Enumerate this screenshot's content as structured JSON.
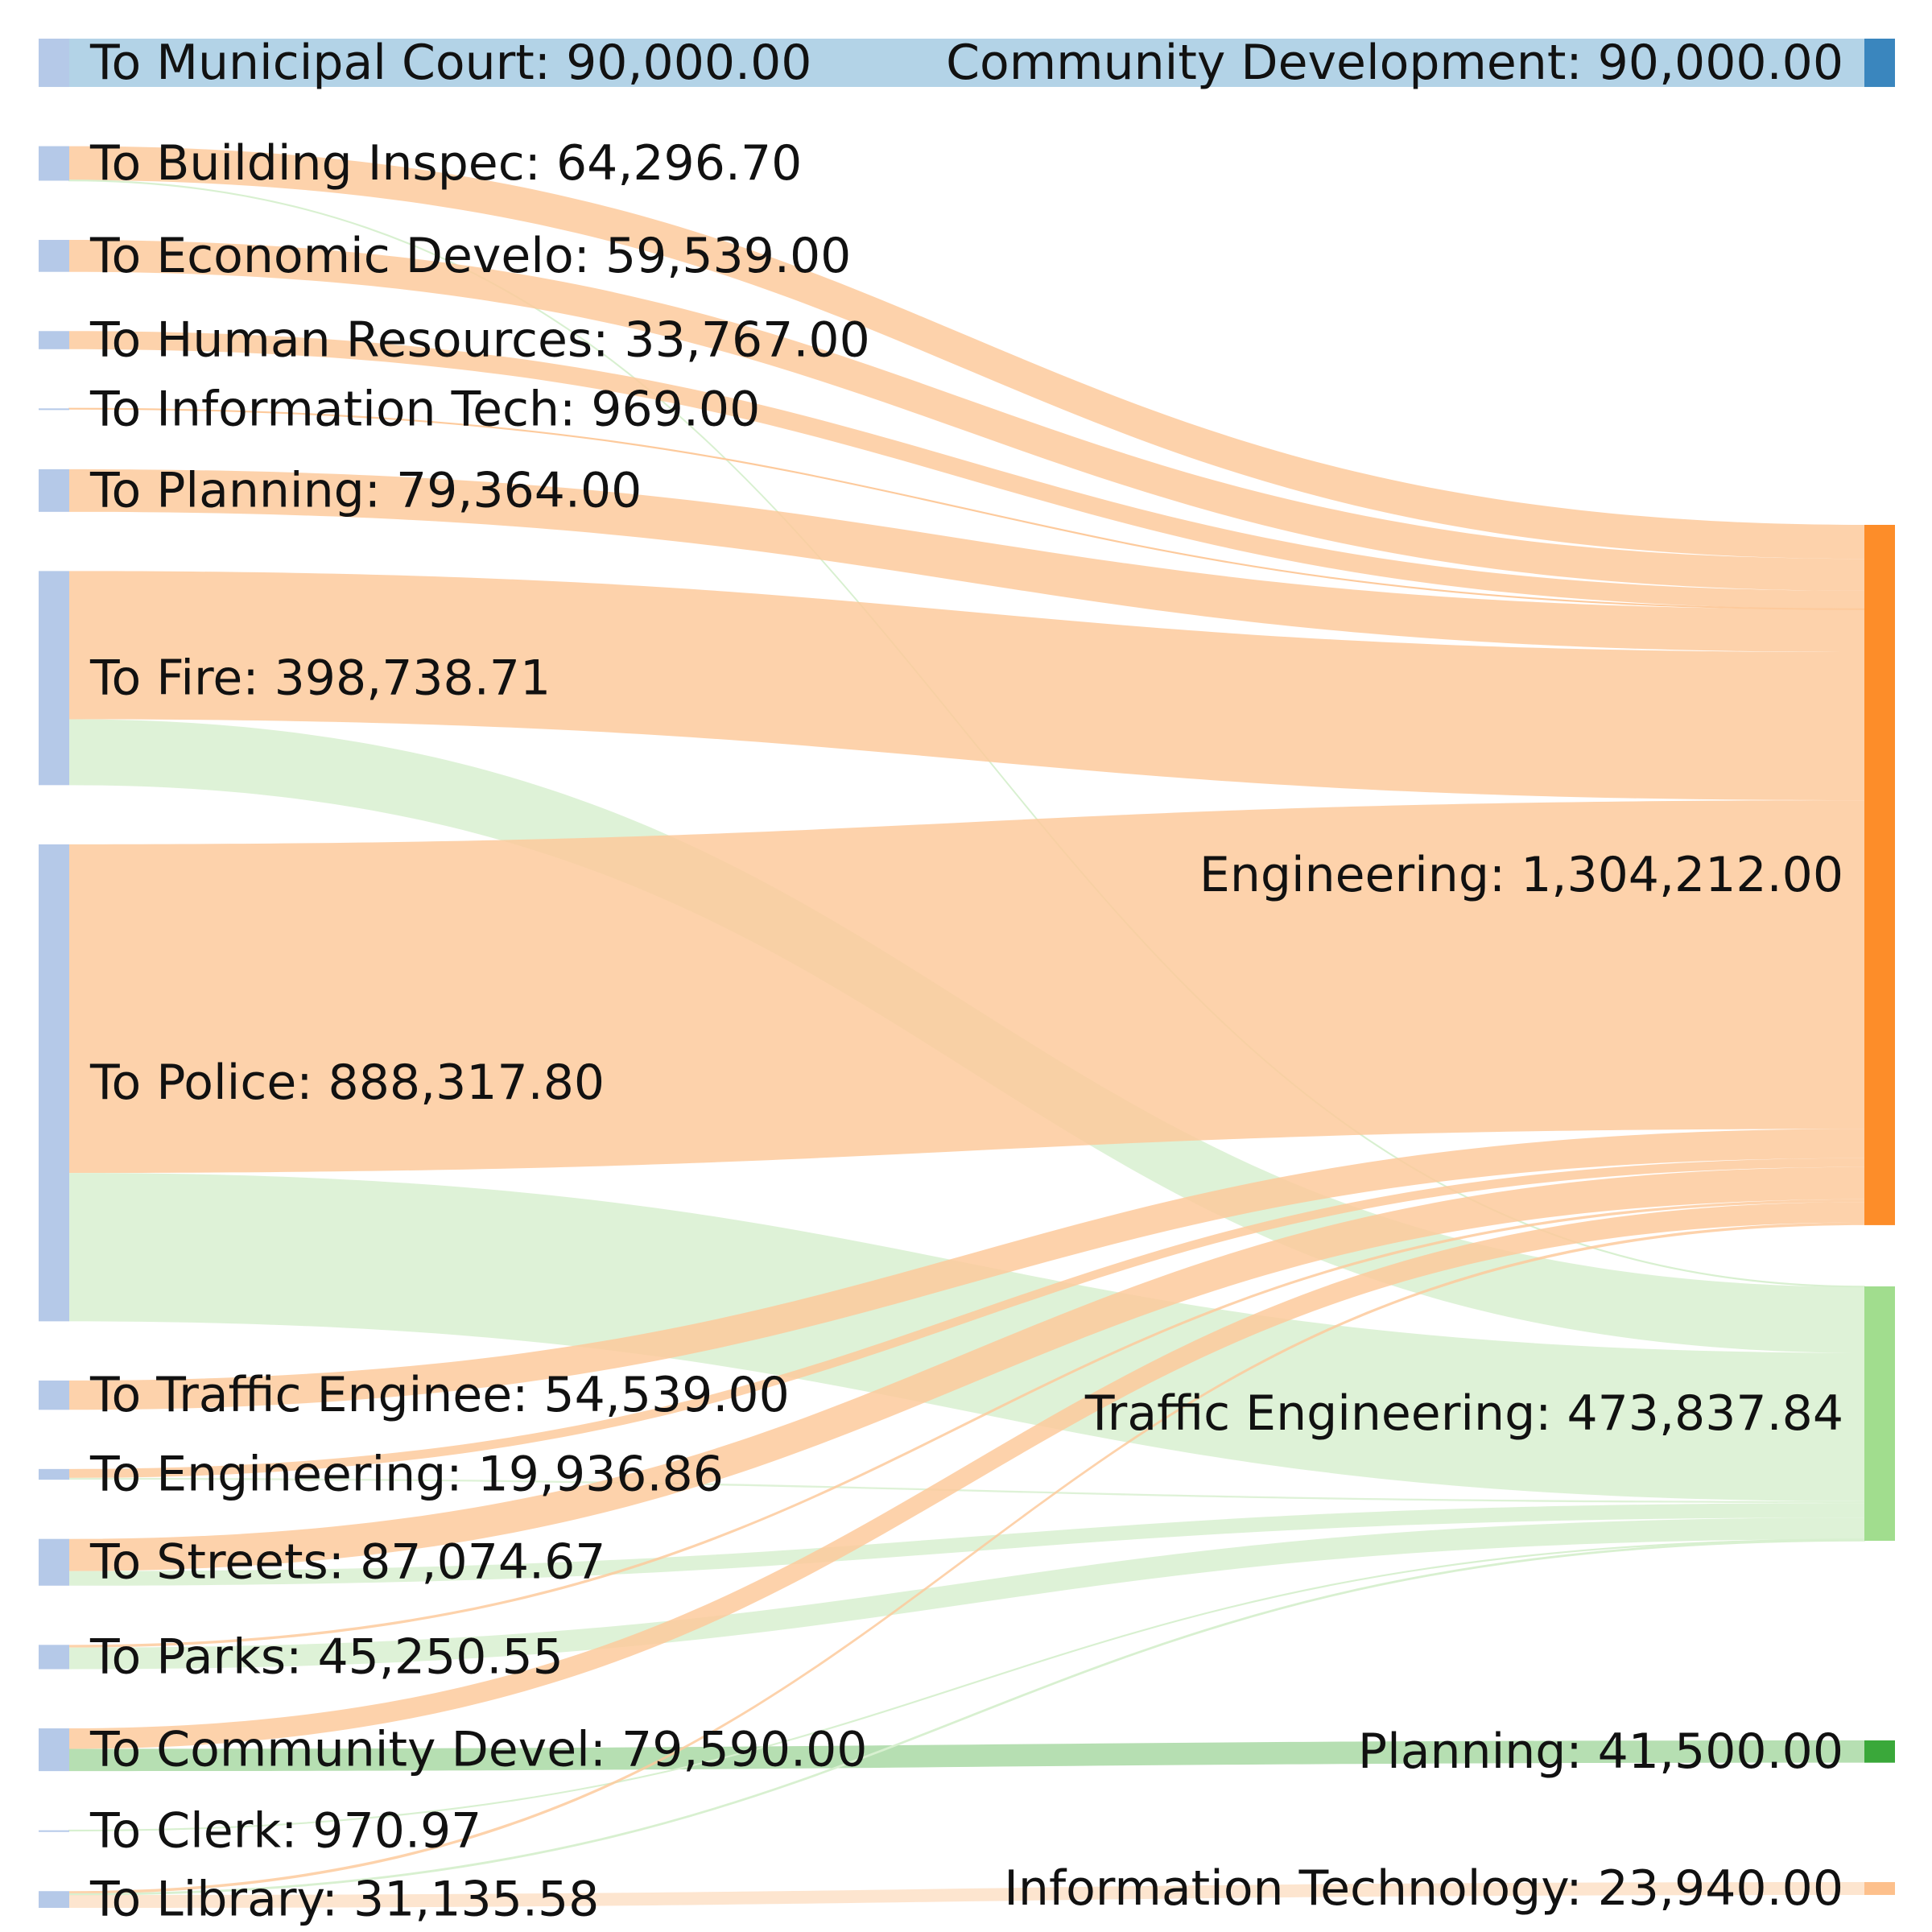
{
  "chart_data": {
    "type": "sankey",
    "units": "",
    "sources": [
      {
        "id": "mc",
        "label": "To Municipal Court: 90,000.00",
        "value": 90000.0,
        "color": "#b5c9e8"
      },
      {
        "id": "bi",
        "label": "To Building Inspec: 64,296.70",
        "value": 64296.7,
        "color": "#b5c9e8"
      },
      {
        "id": "ed",
        "label": "To Economic Develo: 59,539.00",
        "value": 59539.0,
        "color": "#b5c9e8"
      },
      {
        "id": "hr",
        "label": "To Human Resources: 33,767.00",
        "value": 33767.0,
        "color": "#b5c9e8"
      },
      {
        "id": "it",
        "label": "To Information Tech: 969.00",
        "value": 969.0,
        "color": "#b5c9e8"
      },
      {
        "id": "pl",
        "label": "To Planning: 79,364.00",
        "value": 79364.0,
        "color": "#b5c9e8"
      },
      {
        "id": "fire",
        "label": "To Fire: 398,738.71",
        "value": 398738.71,
        "color": "#b5c9e8"
      },
      {
        "id": "pol",
        "label": "To Police: 888,317.80",
        "value": 888317.8,
        "color": "#b5c9e8"
      },
      {
        "id": "te",
        "label": "To Traffic Enginee: 54,539.00",
        "value": 54539.0,
        "color": "#b5c9e8"
      },
      {
        "id": "eng",
        "label": "To Engineering: 19,936.86",
        "value": 19936.86,
        "color": "#b5c9e8"
      },
      {
        "id": "st",
        "label": "To Streets: 87,074.67",
        "value": 87074.67,
        "color": "#b5c9e8"
      },
      {
        "id": "pk",
        "label": "To Parks: 45,250.55",
        "value": 45250.55,
        "color": "#b5c9e8"
      },
      {
        "id": "cd",
        "label": "To Community Devel: 79,590.00",
        "value": 79590.0,
        "color": "#b5c9e8"
      },
      {
        "id": "clk",
        "label": "To Clerk: 970.97",
        "value": 970.97,
        "color": "#b5c9e8"
      },
      {
        "id": "lib",
        "label": "To Library: 31,135.58",
        "value": 31135.58,
        "color": "#b5c9e8"
      }
    ],
    "targets": [
      {
        "id": "T_CD",
        "label": "Community Development: 90,000.00",
        "value": 90000.0,
        "color": "#3a86be",
        "link_color": "#a6cbe3"
      },
      {
        "id": "T_ENG",
        "label": "Engineering: 1,304,212.00",
        "value": 1304212.0,
        "color": "#fd8d29",
        "link_color": "#fdca9c"
      },
      {
        "id": "T_TE",
        "label": "Traffic Engineering: 473,837.84",
        "value": 473837.84,
        "color": "#a1dd8e",
        "link_color": "#d8f0d0"
      },
      {
        "id": "T_PL",
        "label": "Planning: 41,500.00",
        "value": 41500.0,
        "color": "#3aa83a",
        "link_color": "#a9d9a5"
      },
      {
        "id": "T_IT",
        "label": "Information Technology: 23,940.00",
        "value": 23940.0,
        "color": "#fdc08c",
        "link_color": "#fde0c7"
      }
    ],
    "flows": [
      {
        "source": "mc",
        "target": "T_CD",
        "value": 90000.0
      },
      {
        "source": "bi",
        "target": "T_ENG",
        "value": 63296.7
      },
      {
        "source": "bi",
        "target": "T_TE",
        "value": 1000.0
      },
      {
        "source": "ed",
        "target": "T_ENG",
        "value": 59539.0
      },
      {
        "source": "hr",
        "target": "T_ENG",
        "value": 33767.0
      },
      {
        "source": "it",
        "target": "T_ENG",
        "value": 969.0
      },
      {
        "source": "pl",
        "target": "T_ENG",
        "value": 79364.0
      },
      {
        "source": "fire",
        "target": "T_ENG",
        "value": 276000.0
      },
      {
        "source": "fire",
        "target": "T_TE",
        "value": 122738.71
      },
      {
        "source": "pol",
        "target": "T_ENG",
        "value": 612000.0
      },
      {
        "source": "pol",
        "target": "T_TE",
        "value": 276317.8
      },
      {
        "source": "te",
        "target": "T_ENG",
        "value": 54539.0
      },
      {
        "source": "eng",
        "target": "T_ENG",
        "value": 16500.0
      },
      {
        "source": "eng",
        "target": "T_TE",
        "value": 3436.86
      },
      {
        "source": "st",
        "target": "T_ENG",
        "value": 60000.0
      },
      {
        "source": "st",
        "target": "T_TE",
        "value": 27074.67
      },
      {
        "source": "pk",
        "target": "T_ENG",
        "value": 5000.0
      },
      {
        "source": "pk",
        "target": "T_TE",
        "value": 40250.55
      },
      {
        "source": "cd",
        "target": "T_ENG",
        "value": 38090.0
      },
      {
        "source": "cd",
        "target": "T_PL",
        "value": 41500.0
      },
      {
        "source": "clk",
        "target": "T_TE",
        "value": 970.97
      },
      {
        "source": "lib",
        "target": "T_ENG",
        "value": 5147.3
      },
      {
        "source": "lib",
        "target": "T_TE",
        "value": 2048.28
      },
      {
        "source": "lib",
        "target": "T_IT",
        "value": 23940.0
      }
    ]
  }
}
